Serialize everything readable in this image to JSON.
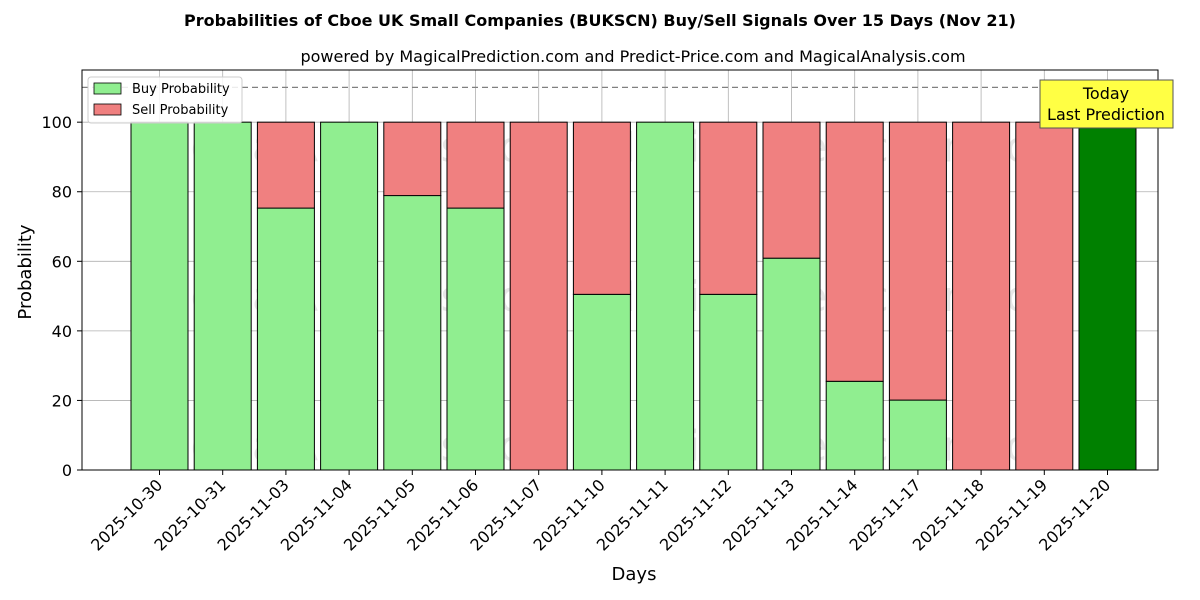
{
  "chart_data": {
    "type": "bar",
    "title": "Probabilities of Cboe UK Small Companies (BUKSCN) Buy/Sell Signals Over 15 Days (Nov 21)",
    "subtitle": "powered by MagicalPrediction.com and Predict-Price.com and MagicalAnalysis.com",
    "xlabel": "Days",
    "ylabel": "Probability",
    "ylim": [
      0,
      115
    ],
    "yticks": [
      "0",
      "20",
      "40",
      "60",
      "80",
      "100"
    ],
    "grid": true,
    "legend_position": "top-left",
    "categories": [
      "2025-10-30",
      "2025-10-31",
      "2025-11-03",
      "2025-11-04",
      "2025-11-05",
      "2025-11-06",
      "2025-11-07",
      "2025-11-10",
      "2025-11-11",
      "2025-11-12",
      "2025-11-13",
      "2025-11-14",
      "2025-11-17",
      "2025-11-18",
      "2025-11-19",
      "2025-11-20"
    ],
    "series": [
      {
        "name": "Buy Probability",
        "color": "#90ee90",
        "values": [
          100,
          100,
          75.3,
          100,
          78.9,
          75.3,
          0,
          50.5,
          100,
          50.5,
          60.9,
          25.5,
          20.1,
          0,
          0,
          100
        ]
      },
      {
        "name": "Sell Probability",
        "color": "#f08080",
        "values": [
          0,
          0,
          24.7,
          0,
          21.1,
          24.7,
          100,
          49.5,
          0,
          49.5,
          39.1,
          74.5,
          79.9,
          100,
          100,
          0
        ]
      }
    ],
    "highlight": {
      "index": 15,
      "color": "#008000"
    },
    "reference_line": {
      "y": 110,
      "style": "dashed"
    },
    "annotation": {
      "line1": "Today",
      "line2": "Last Prediction",
      "background": "#ffff44"
    },
    "watermarks": [
      "MagicalAnalysis.com",
      "MagicalPrediction.com"
    ]
  }
}
